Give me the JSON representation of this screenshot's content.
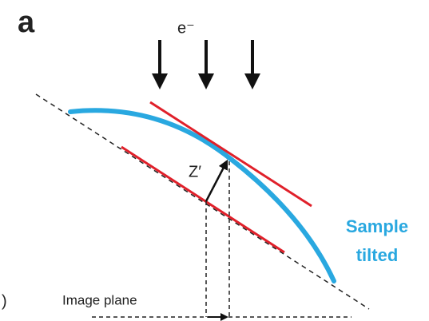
{
  "panel_label": "a",
  "beam_label": "e⁻",
  "height_label": "Z′",
  "sample_label": [
    "Sample",
    "tilted"
  ],
  "plane_label": "Image plane",
  "edge_mark": ")"
}
